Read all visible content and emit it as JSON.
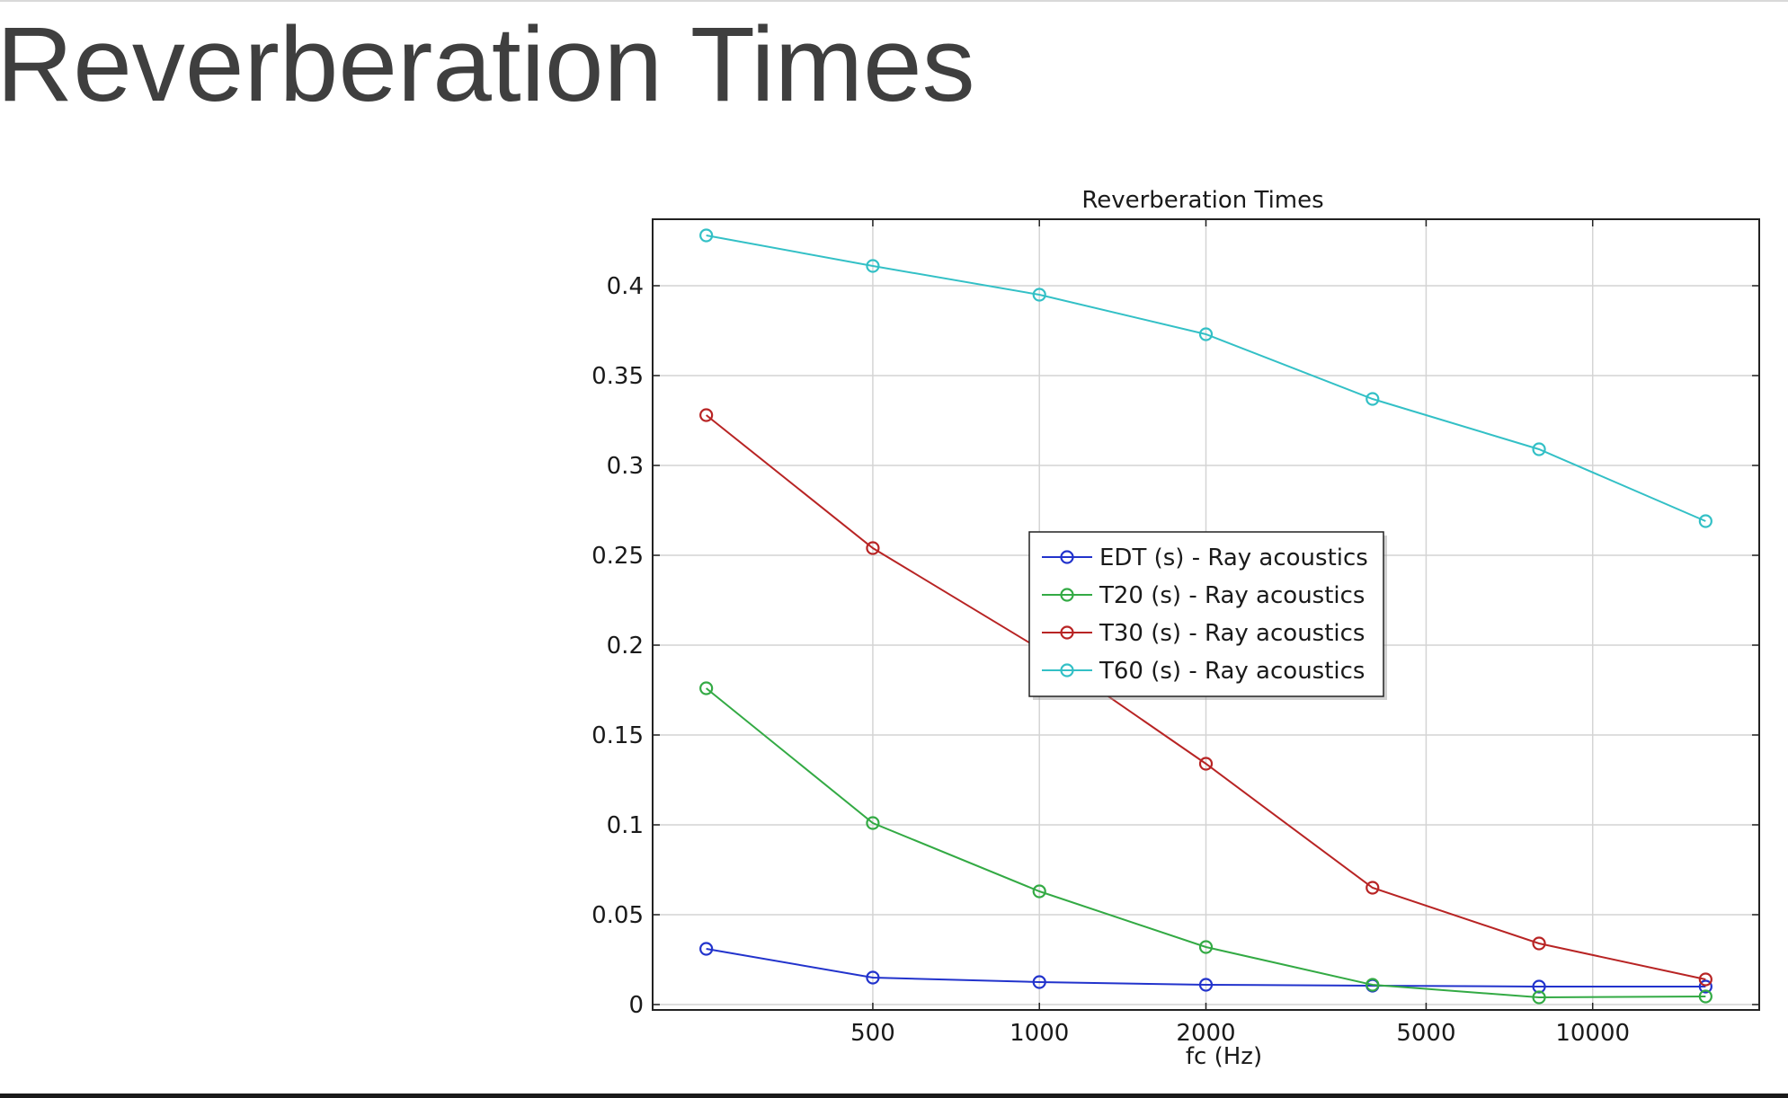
{
  "slide": {
    "title": "Reverberation Times"
  },
  "chart_data": {
    "type": "line",
    "title": "Reverberation Times",
    "xlabel": "fc (Hz)",
    "ylabel": "",
    "xscale": "log",
    "xlim": [
      200,
      20000
    ],
    "ylim": [
      -0.003,
      0.437
    ],
    "x_ticks": [
      500,
      1000,
      2000,
      5000,
      10000
    ],
    "y_ticks": [
      0,
      0.05,
      0.1,
      0.15,
      0.2,
      0.25,
      0.3,
      0.35,
      0.4
    ],
    "x_tick_labels": [
      "500",
      "1000",
      "2000",
      "5000",
      "10000"
    ],
    "y_tick_labels": [
      "0",
      "0.05",
      "0.1",
      "0.15",
      "0.2",
      "0.25",
      "0.3",
      "0.35",
      "0.4"
    ],
    "grid": true,
    "legend_position": "center",
    "x": [
      250,
      500,
      1000,
      2000,
      4000,
      8000,
      16000
    ],
    "series": [
      {
        "name": "EDT (s) - Ray acoustics",
        "color": "#2233cc",
        "values": [
          0.031,
          0.015,
          0.0125,
          0.011,
          0.0105,
          0.01,
          0.01
        ]
      },
      {
        "name": "T20 (s) - Ray acoustics",
        "color": "#33aa44",
        "values": [
          0.176,
          0.101,
          0.063,
          0.032,
          0.011,
          0.004,
          0.0045
        ]
      },
      {
        "name": "T30 (s) - Ray acoustics",
        "color": "#b82424",
        "values": [
          0.328,
          0.254,
          0.198,
          0.134,
          0.065,
          0.034,
          0.014
        ]
      },
      {
        "name": "T60 (s) - Ray acoustics",
        "color": "#33c0c6",
        "values": [
          0.428,
          0.411,
          0.395,
          0.373,
          0.337,
          0.309,
          0.269
        ]
      }
    ]
  }
}
